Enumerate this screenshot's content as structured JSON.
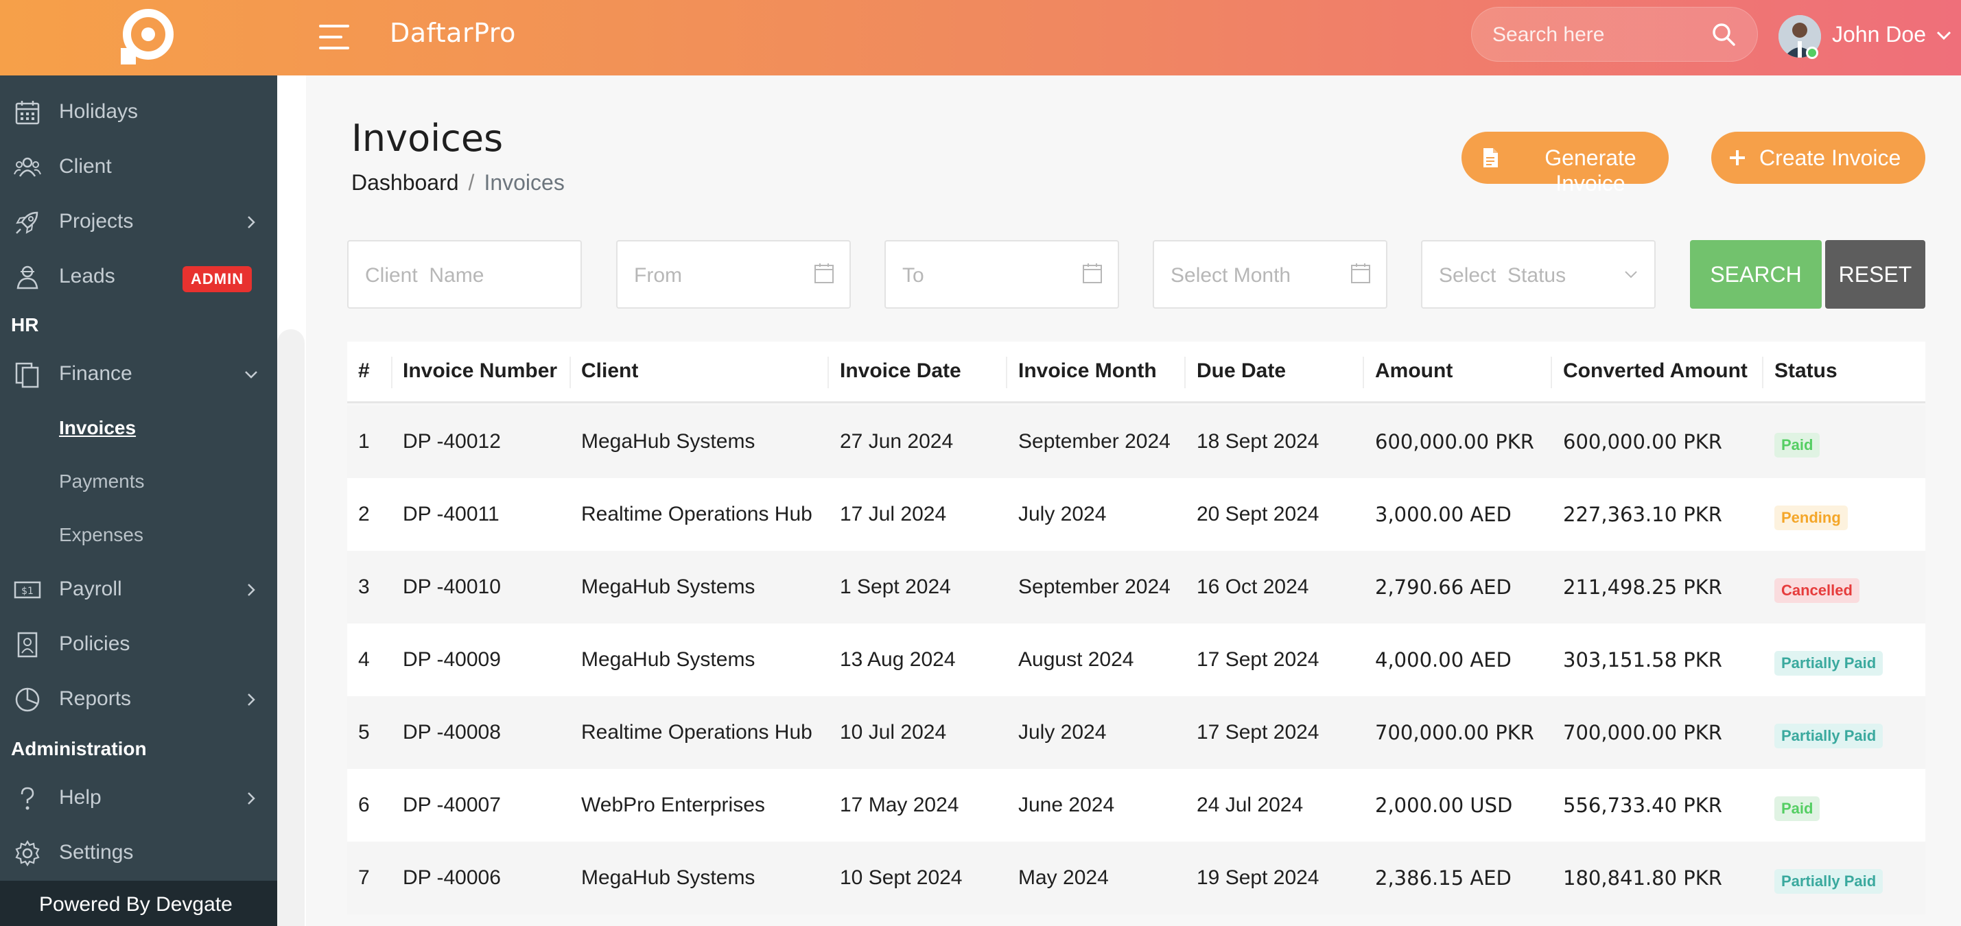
{
  "header": {
    "brand": "DaftarPro",
    "search_placeholder": "Search here",
    "user_name": "John Doe"
  },
  "sidebar": {
    "items": [
      {
        "label": "Holidays",
        "icon": "calendar-icon"
      },
      {
        "label": "Client",
        "icon": "users-icon"
      },
      {
        "label": "Projects",
        "icon": "rocket-icon"
      },
      {
        "label": "Leads",
        "icon": "leads-icon",
        "badge": "ADMIN"
      }
    ],
    "section_hr": "HR",
    "finance": {
      "label": "Finance",
      "subitems": [
        "Invoices",
        "Payments",
        "Expenses"
      ]
    },
    "items2": [
      {
        "label": "Payroll",
        "icon": "payroll-icon"
      },
      {
        "label": "Policies",
        "icon": "file-icon"
      },
      {
        "label": "Reports",
        "icon": "pie-chart-icon"
      }
    ],
    "section_admin": "Administration",
    "items3": [
      {
        "label": "Help",
        "icon": "help-icon"
      },
      {
        "label": "Settings",
        "icon": "gear-icon"
      }
    ],
    "powered_by": "Powered By Devgate"
  },
  "page": {
    "title": "Invoices",
    "breadcrumb_home": "Dashboard",
    "breadcrumb_sep": "/",
    "breadcrumb_current": "Invoices",
    "generate_button": "Generate Invoice",
    "create_button": "Create Invoice"
  },
  "filters": {
    "client_placeholder": "Client  Name",
    "from_placeholder": "From",
    "to_placeholder": "To",
    "month_placeholder": "Select Month",
    "status_placeholder": "Select  Status",
    "search_button": "SEARCH",
    "reset_button": "RESET"
  },
  "table": {
    "headers": [
      "#",
      "Invoice Number",
      "Client",
      "Invoice Date",
      "Invoice Month",
      "Due Date",
      "Amount",
      "Converted Amount",
      "Status"
    ],
    "rows": [
      {
        "n": "1",
        "inv": "DP -40012",
        "client": "MegaHub Systems",
        "date": "27 Jun 2024",
        "month": "September 2024",
        "due": "18 Sept 2024",
        "amount": "600,000.00  PKR",
        "converted": "600,000.00  PKR",
        "status": "Paid",
        "status_type": "paid"
      },
      {
        "n": "2",
        "inv": "DP -40011",
        "client": "Realtime Operations Hub",
        "date": "17 Jul 2024",
        "month": "July 2024",
        "due": "20 Sept 2024",
        "amount": "3,000.00  AED",
        "converted": "227,363.10  PKR",
        "status": "Pending",
        "status_type": "pending"
      },
      {
        "n": "3",
        "inv": "DP -40010",
        "client": "MegaHub Systems",
        "date": "1 Sept 2024",
        "month": "September 2024",
        "due": "16 Oct 2024",
        "amount": "2,790.66  AED",
        "converted": "211,498.25  PKR",
        "status": "Cancelled",
        "status_type": "cancelled"
      },
      {
        "n": "4",
        "inv": "DP -40009",
        "client": "MegaHub Systems",
        "date": "13 Aug 2024",
        "month": "August 2024",
        "due": "17 Sept 2024",
        "amount": "4,000.00  AED",
        "converted": "303,151.58  PKR",
        "status": "Partially Paid",
        "status_type": "partial"
      },
      {
        "n": "5",
        "inv": "DP -40008",
        "client": "Realtime Operations Hub",
        "date": "10 Jul 2024",
        "month": "July 2024",
        "due": "17 Sept 2024",
        "amount": "700,000.00  PKR",
        "converted": "700,000.00  PKR",
        "status": "Partially Paid",
        "status_type": "partial"
      },
      {
        "n": "6",
        "inv": "DP -40007",
        "client": "WebPro Enterprises",
        "date": "17 May 2024",
        "month": "June 2024",
        "due": "24 Jul 2024",
        "amount": "2,000.00  USD",
        "converted": "556,733.40  PKR",
        "status": "Paid",
        "status_type": "paid"
      },
      {
        "n": "7",
        "inv": "DP -40006",
        "client": "MegaHub Systems",
        "date": "10 Sept 2024",
        "month": "May 2024",
        "due": "19 Sept 2024",
        "amount": "2,386.15  AED",
        "converted": "180,841.80  PKR",
        "status": "Partially Paid",
        "status_type": "partial"
      }
    ]
  },
  "colors": {
    "header_gradient": [
      "#f6a049",
      "#ef6f7a"
    ],
    "sidebar_bg": "#34444c",
    "accent_orange": "#f6a049",
    "search_green": "#72c26d",
    "reset_gray": "#5d5d5d"
  }
}
